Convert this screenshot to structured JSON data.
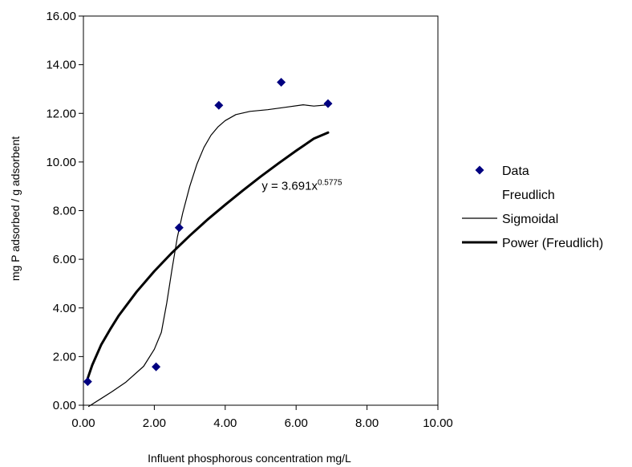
{
  "chart_data": {
    "type": "scatter",
    "title": "",
    "xlabel": "Influent phosphorous concentration mg/L",
    "ylabel": "mg P adsorbed / g adsorbent",
    "xlim": [
      0,
      10
    ],
    "ylim": [
      0,
      16
    ],
    "x_ticks": [
      "0.00",
      "2.00",
      "4.00",
      "6.00",
      "8.00",
      "10.00"
    ],
    "y_ticks": [
      "0.00",
      "2.00",
      "4.00",
      "6.00",
      "8.00",
      "10.00",
      "12.00",
      "14.00",
      "16.00"
    ],
    "grid": false,
    "legend_position": "right",
    "series": [
      {
        "name": "Data",
        "kind": "markers",
        "marker": "diamond",
        "color": "#000080",
        "points": [
          {
            "x": 0.12,
            "y": 0.97
          },
          {
            "x": 2.05,
            "y": 1.58
          },
          {
            "x": 2.7,
            "y": 7.3
          },
          {
            "x": 3.82,
            "y": 12.33
          },
          {
            "x": 5.58,
            "y": 13.28
          },
          {
            "x": 6.9,
            "y": 12.4
          }
        ]
      },
      {
        "name": "Freudlich",
        "kind": "none",
        "points": []
      },
      {
        "name": "Sigmoidal",
        "kind": "thin-line",
        "color": "#000000",
        "points": [
          {
            "x": 0.15,
            "y": -0.05
          },
          {
            "x": 0.8,
            "y": 0.55
          },
          {
            "x": 1.2,
            "y": 0.95
          },
          {
            "x": 1.7,
            "y": 1.6
          },
          {
            "x": 2.0,
            "y": 2.3
          },
          {
            "x": 2.2,
            "y": 3.0
          },
          {
            "x": 2.35,
            "y": 4.2
          },
          {
            "x": 2.5,
            "y": 5.6
          },
          {
            "x": 2.65,
            "y": 6.9
          },
          {
            "x": 2.8,
            "y": 7.9
          },
          {
            "x": 3.0,
            "y": 9.0
          },
          {
            "x": 3.2,
            "y": 9.9
          },
          {
            "x": 3.4,
            "y": 10.6
          },
          {
            "x": 3.6,
            "y": 11.1
          },
          {
            "x": 3.8,
            "y": 11.45
          },
          {
            "x": 4.0,
            "y": 11.7
          },
          {
            "x": 4.3,
            "y": 11.95
          },
          {
            "x": 4.7,
            "y": 12.08
          },
          {
            "x": 5.2,
            "y": 12.15
          },
          {
            "x": 5.7,
            "y": 12.25
          },
          {
            "x": 6.2,
            "y": 12.35
          },
          {
            "x": 6.5,
            "y": 12.3
          },
          {
            "x": 6.9,
            "y": 12.35
          }
        ]
      },
      {
        "name": "Power (Freudlich)",
        "kind": "thick-line",
        "color": "#000000",
        "points": [
          {
            "x": 0.12,
            "y": 1.1
          },
          {
            "x": 0.25,
            "y": 1.65
          },
          {
            "x": 0.5,
            "y": 2.48
          },
          {
            "x": 0.75,
            "y": 3.11
          },
          {
            "x": 1.0,
            "y": 3.69
          },
          {
            "x": 1.5,
            "y": 4.66
          },
          {
            "x": 2.0,
            "y": 5.51
          },
          {
            "x": 2.5,
            "y": 6.27
          },
          {
            "x": 3.0,
            "y": 6.97
          },
          {
            "x": 3.5,
            "y": 7.63
          },
          {
            "x": 4.0,
            "y": 8.24
          },
          {
            "x": 4.5,
            "y": 8.83
          },
          {
            "x": 5.0,
            "y": 9.4
          },
          {
            "x": 5.5,
            "y": 9.94
          },
          {
            "x": 6.0,
            "y": 10.46
          },
          {
            "x": 6.5,
            "y": 10.96
          },
          {
            "x": 6.9,
            "y": 11.21
          }
        ]
      }
    ],
    "annotation": {
      "text": "y = 3.691x",
      "exponent": "0.5775",
      "x": 5.03,
      "y": 8.85
    }
  }
}
